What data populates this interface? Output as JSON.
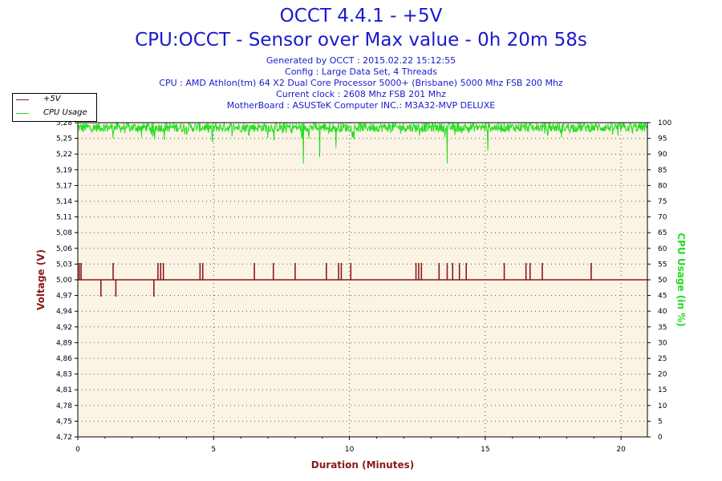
{
  "header": {
    "title_line1": "OCCT 4.4.1 - +5V",
    "title_line2": "CPU:OCCT - Sensor over Max value - 0h 20m 58s",
    "generated": "Generated by OCCT : 2015.02.22 15:12:55",
    "config": "Config : Large Data Set, 4 Threads",
    "cpu": "CPU : AMD Athlon(tm) 64 X2 Dual Core Processor 5000+ (Brisbane) 5000 Mhz FSB 200 Mhz",
    "clock": "Current clock : 2608 Mhz FSB 201 Mhz",
    "motherboard": "MotherBoard : ASUSTeK Computer INC.: M3A32-MVP DELUXE"
  },
  "legend": [
    {
      "label": "+5V",
      "color": "#8b1a1a"
    },
    {
      "label": "CPU Usage",
      "color": "#22dd22"
    }
  ],
  "chart_data": {
    "type": "line",
    "xlabel": "Duration (Minutes)",
    "ylabel_left": "Voltage (V)",
    "ylabel_right": "CPU Usage (in %)",
    "xlim": [
      0,
      20.97
    ],
    "x_ticks": [
      "0",
      "5",
      "10",
      "15",
      "20"
    ],
    "x_tick_values": [
      0,
      5,
      10,
      15,
      20
    ],
    "ylim_left": [
      4.72,
      5.28
    ],
    "y_left_ticks": [
      "4,72",
      "4,75",
      "4,78",
      "4,81",
      "4,83",
      "4,86",
      "4,89",
      "4,92",
      "4,94",
      "4,97",
      "5,00",
      "5,03",
      "5,06",
      "5,08",
      "5,11",
      "5,14",
      "5,17",
      "5,19",
      "5,22",
      "5,25",
      "5,28"
    ],
    "ylim_right": [
      0,
      100
    ],
    "y_right_ticks": [
      "0",
      "5",
      "10",
      "15",
      "20",
      "25",
      "30",
      "35",
      "40",
      "45",
      "50",
      "55",
      "60",
      "65",
      "70",
      "75",
      "80",
      "85",
      "90",
      "95",
      "100"
    ],
    "grid": true,
    "legend_position": "top-left",
    "series": [
      {
        "name": "+5V",
        "color": "#8b1a1a",
        "axis": "left",
        "baseline": 5.0,
        "spikes": [
          {
            "x": 0.05,
            "y": 5.03
          },
          {
            "x": 0.12,
            "y": 5.03
          },
          {
            "x": 0.85,
            "y": 4.97
          },
          {
            "x": 1.3,
            "y": 5.03
          },
          {
            "x": 1.4,
            "y": 4.97
          },
          {
            "x": 2.8,
            "y": 4.97
          },
          {
            "x": 2.95,
            "y": 5.03
          },
          {
            "x": 3.05,
            "y": 5.03
          },
          {
            "x": 3.15,
            "y": 5.03
          },
          {
            "x": 4.5,
            "y": 5.03
          },
          {
            "x": 4.6,
            "y": 5.03
          },
          {
            "x": 6.5,
            "y": 5.03
          },
          {
            "x": 7.2,
            "y": 5.03
          },
          {
            "x": 8.0,
            "y": 5.03
          },
          {
            "x": 9.15,
            "y": 5.03
          },
          {
            "x": 9.6,
            "y": 5.03
          },
          {
            "x": 9.7,
            "y": 5.03
          },
          {
            "x": 10.05,
            "y": 5.03
          },
          {
            "x": 12.45,
            "y": 5.03
          },
          {
            "x": 12.55,
            "y": 5.03
          },
          {
            "x": 12.65,
            "y": 5.03
          },
          {
            "x": 13.3,
            "y": 5.03
          },
          {
            "x": 13.6,
            "y": 5.03
          },
          {
            "x": 13.8,
            "y": 5.03
          },
          {
            "x": 14.05,
            "y": 5.03
          },
          {
            "x": 14.3,
            "y": 5.03
          },
          {
            "x": 15.7,
            "y": 5.03
          },
          {
            "x": 16.5,
            "y": 5.03
          },
          {
            "x": 16.65,
            "y": 5.03
          },
          {
            "x": 17.1,
            "y": 5.03
          },
          {
            "x": 18.9,
            "y": 5.03
          }
        ]
      },
      {
        "name": "CPU Usage",
        "color": "#22dd22",
        "axis": "right",
        "typical_range": [
          97,
          100
        ],
        "dips": [
          {
            "x": 0.2,
            "y": 97
          },
          {
            "x": 1.3,
            "y": 95
          },
          {
            "x": 2.8,
            "y": 96
          },
          {
            "x": 4.95,
            "y": 94
          },
          {
            "x": 6.3,
            "y": 96
          },
          {
            "x": 8.3,
            "y": 87
          },
          {
            "x": 8.5,
            "y": 95
          },
          {
            "x": 8.9,
            "y": 89
          },
          {
            "x": 9.5,
            "y": 92
          },
          {
            "x": 13.6,
            "y": 87
          },
          {
            "x": 15.1,
            "y": 91
          },
          {
            "x": 17.3,
            "y": 96
          }
        ]
      }
    ]
  }
}
